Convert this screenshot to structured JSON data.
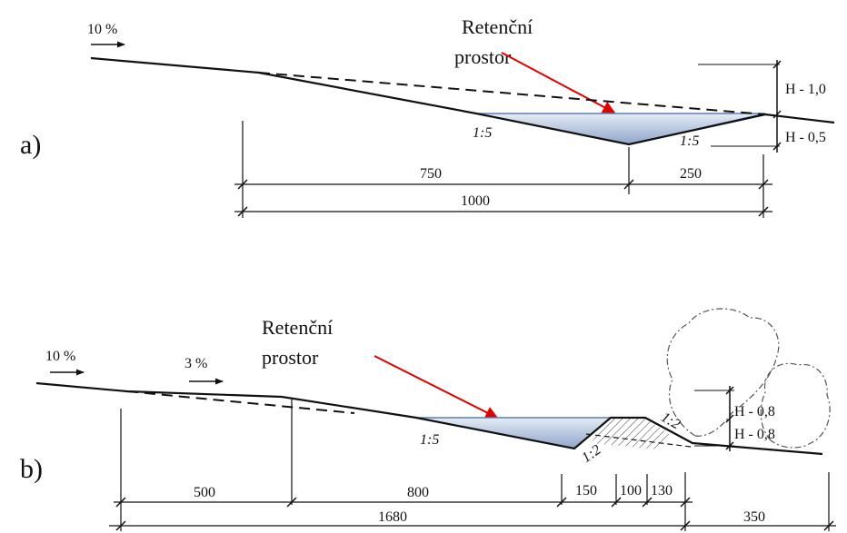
{
  "panel_a": {
    "panel_label": "a)",
    "flow_gradient": "10 %",
    "callout": [
      "Retenční",
      "prostor"
    ],
    "slope_left": "1:5",
    "slope_right": "1:5",
    "depth_upper": "H - 1,0",
    "depth_lower": "H - 0,5",
    "dim_left": "750",
    "dim_right": "250",
    "dim_total": "1000"
  },
  "panel_b": {
    "panel_label": "b)",
    "flow_gradient_1": "10 %",
    "flow_gradient_2": "3 %",
    "callout": [
      "Retenční",
      "prostor"
    ],
    "slope_pond": "1:5",
    "slope_berm_in": "1:2",
    "slope_berm_out": "1:2",
    "depth_upper": "H - 0,8",
    "depth_lower": "H - 0,8",
    "dim_1": "500",
    "dim_2": "800",
    "dim_3": "150",
    "dim_4": "100",
    "dim_5": "130",
    "dim_total": "1680",
    "dim_end": "350"
  },
  "colors": {
    "water_light": "#dfe8f3",
    "water_dark": "#8fa6c8",
    "water_edge": "#5d7fb0",
    "arrow": "#e00000",
    "line": "#111111"
  }
}
